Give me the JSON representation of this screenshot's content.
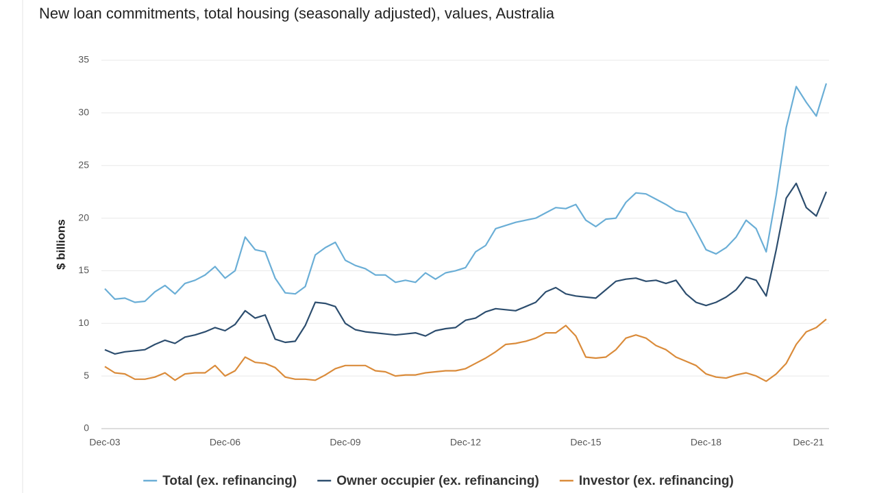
{
  "chart_data": {
    "type": "line",
    "title": "New loan commitments, total housing (seasonally adjusted), values, Australia",
    "y_label": "$ billions",
    "x": [
      "Dec-03",
      null,
      null,
      null,
      null,
      null,
      null,
      null,
      null,
      null,
      null,
      null,
      "Dec-06",
      null,
      null,
      null,
      null,
      null,
      null,
      null,
      null,
      null,
      null,
      null,
      "Dec-09",
      null,
      null,
      null,
      null,
      null,
      null,
      null,
      null,
      null,
      null,
      null,
      "Dec-12",
      null,
      null,
      null,
      null,
      null,
      null,
      null,
      null,
      null,
      null,
      null,
      "Dec-15",
      null,
      null,
      null,
      null,
      null,
      null,
      null,
      null,
      null,
      null,
      null,
      "Dec-18",
      null,
      null,
      null,
      null,
      null,
      null,
      null,
      null,
      null,
      null,
      null,
      "Dec-21"
    ],
    "ylim": [
      0,
      35
    ],
    "yticks": [
      0,
      5,
      10,
      15,
      20,
      25,
      30,
      35
    ],
    "grid": true,
    "series": [
      {
        "name": "Total (ex. refinancing)",
        "color": "#6aaed6",
        "values": [
          13.3,
          12.3,
          12.4,
          12.0,
          12.1,
          13.0,
          13.6,
          12.8,
          13.8,
          14.1,
          14.6,
          15.4,
          14.3,
          15.0,
          18.2,
          17.0,
          16.8,
          14.3,
          12.9,
          12.8,
          13.5,
          16.5,
          17.2,
          17.7,
          16.0,
          15.5,
          15.2,
          14.6,
          14.6,
          13.9,
          14.1,
          13.9,
          14.8,
          14.2,
          14.8,
          15.0,
          15.3,
          16.8,
          17.4,
          19.0,
          19.3,
          19.6,
          19.8,
          20.0,
          20.5,
          21.0,
          20.9,
          21.3,
          19.8,
          19.2,
          19.9,
          20.0,
          21.5,
          22.4,
          22.3,
          21.8,
          21.3,
          20.7,
          20.5,
          18.8,
          17.0,
          16.6,
          17.2,
          18.2,
          19.8,
          19.0,
          16.8,
          22.2,
          28.6,
          32.5,
          31.0,
          29.7,
          32.8
        ]
      },
      {
        "name": "Owner occupier (ex. refinancing)",
        "color": "#2c4d6e",
        "values": [
          7.5,
          7.1,
          7.3,
          7.4,
          7.5,
          8.0,
          8.4,
          8.1,
          8.7,
          8.9,
          9.2,
          9.6,
          9.3,
          9.9,
          11.2,
          10.5,
          10.8,
          8.5,
          8.2,
          8.3,
          9.8,
          12.0,
          11.9,
          11.6,
          10.0,
          9.4,
          9.2,
          9.1,
          9.0,
          8.9,
          9.0,
          9.1,
          8.8,
          9.3,
          9.5,
          9.6,
          10.3,
          10.5,
          11.1,
          11.4,
          11.3,
          11.2,
          11.6,
          12.0,
          13.0,
          13.4,
          12.8,
          12.6,
          12.5,
          12.4,
          13.2,
          14.0,
          14.2,
          14.3,
          14.0,
          14.1,
          13.8,
          14.1,
          12.8,
          12.0,
          11.7,
          12.0,
          12.5,
          13.2,
          14.4,
          14.1,
          12.6,
          17.0,
          21.9,
          23.3,
          21.0,
          20.2,
          22.5
        ]
      },
      {
        "name": "Investor (ex. refinancing)",
        "color": "#da8b3a",
        "values": [
          5.9,
          5.3,
          5.2,
          4.7,
          4.7,
          4.9,
          5.3,
          4.6,
          5.2,
          5.3,
          5.3,
          6.0,
          5.0,
          5.5,
          6.8,
          6.3,
          6.2,
          5.8,
          4.9,
          4.7,
          4.7,
          4.6,
          5.1,
          5.7,
          6.0,
          6.0,
          6.0,
          5.5,
          5.4,
          5.0,
          5.1,
          5.1,
          5.3,
          5.4,
          5.5,
          5.5,
          5.7,
          6.2,
          6.7,
          7.3,
          8.0,
          8.1,
          8.3,
          8.6,
          9.1,
          9.1,
          9.8,
          8.8,
          6.8,
          6.7,
          6.8,
          7.5,
          8.6,
          8.9,
          8.6,
          7.9,
          7.5,
          6.8,
          6.4,
          6.0,
          5.2,
          4.9,
          4.8,
          5.1,
          5.3,
          5.0,
          4.5,
          5.2,
          6.2,
          8.0,
          9.2,
          9.6,
          10.4
        ]
      }
    ]
  }
}
